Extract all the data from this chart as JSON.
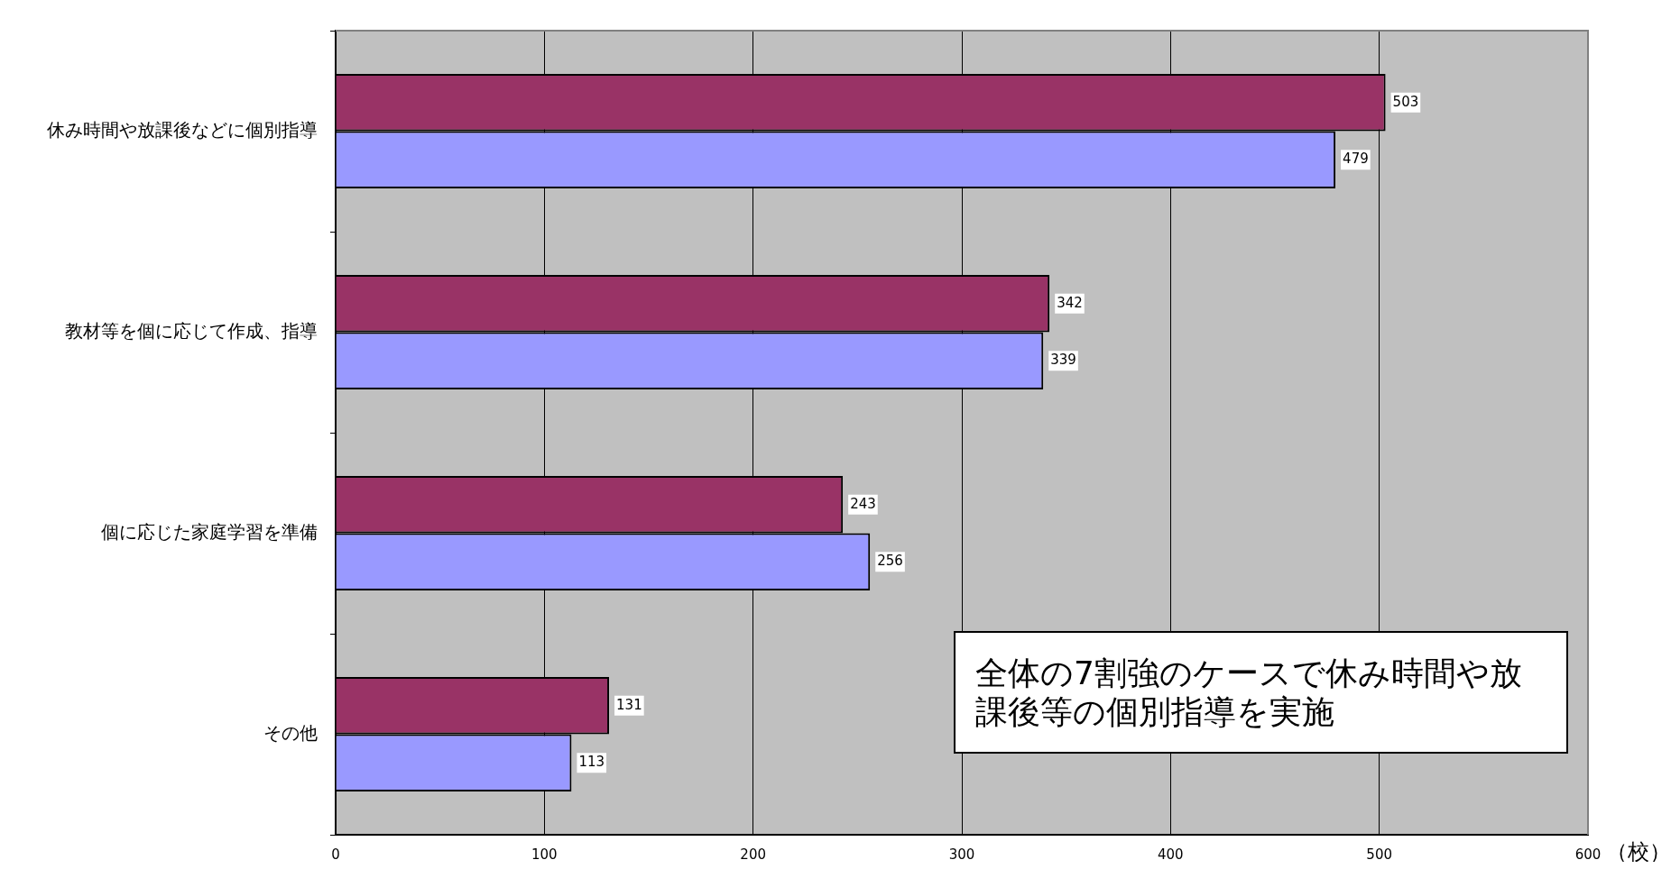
{
  "chart_data": {
    "type": "bar",
    "orientation": "horizontal",
    "categories": [
      "休み時間や放課後などに個別指導",
      "教材等を個に応じて作成、指導",
      "個に応じた家庭学習を準備",
      "その他"
    ],
    "series": [
      {
        "color": "#993366",
        "values": [
          503,
          342,
          243,
          131
        ]
      },
      {
        "color": "#9999ff",
        "values": [
          479,
          339,
          256,
          113
        ]
      }
    ],
    "xlabel": "（校）",
    "xlim": [
      0,
      600
    ],
    "xticks": [
      0,
      100,
      200,
      300,
      400,
      500,
      600
    ],
    "grid": "x",
    "data_labels": true,
    "annotations": [
      "全体の7割強のケースで休み時間や放課後等の個別指導を実施"
    ]
  }
}
